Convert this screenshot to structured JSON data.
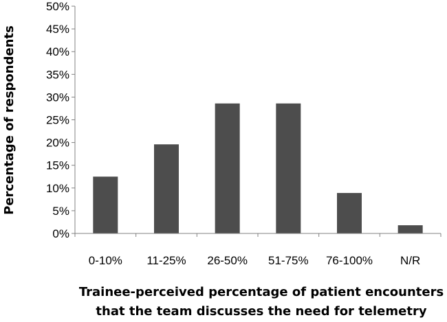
{
  "chart_data": {
    "type": "bar",
    "categories": [
      "0-10%",
      "11-25%",
      "26-50%",
      "51-75%",
      "76-100%",
      "N/R"
    ],
    "values": [
      12.5,
      19.6,
      28.6,
      28.6,
      8.9,
      1.8
    ],
    "ylabel": "Percentage of respondents",
    "xlabel_lines": [
      "Trainee-perceived percentage of patient encounters",
      "that the team discusses the need for telemetry"
    ],
    "ylim": [
      0,
      50
    ],
    "ytick_labels": [
      "0%",
      "5%",
      "10%",
      "15%",
      "20%",
      "25%",
      "30%",
      "35%",
      "40%",
      "45%",
      "50%"
    ],
    "grid": false,
    "legend": "none",
    "bar_color": "#4d4d4d"
  }
}
